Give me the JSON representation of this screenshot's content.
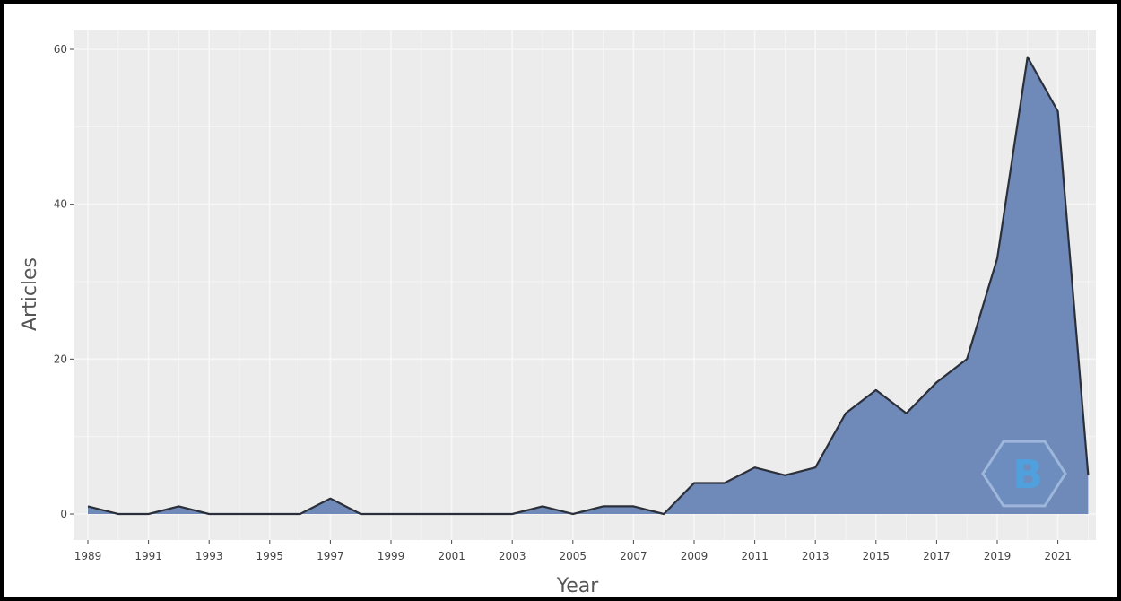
{
  "chart_data": {
    "type": "area",
    "title": "",
    "xlabel": "Year",
    "ylabel": "Articles",
    "x": [
      1989,
      1990,
      1991,
      1992,
      1993,
      1994,
      1995,
      1996,
      1997,
      1998,
      1999,
      2000,
      2001,
      2002,
      2003,
      2004,
      2005,
      2006,
      2007,
      2008,
      2009,
      2010,
      2011,
      2012,
      2013,
      2014,
      2015,
      2016,
      2017,
      2018,
      2019,
      2020,
      2021,
      2022
    ],
    "series": [
      {
        "values": [
          1,
          0,
          0,
          1,
          0,
          0,
          0,
          0,
          2,
          0,
          0,
          0,
          0,
          0,
          0,
          1,
          0,
          1,
          1,
          0,
          4,
          4,
          6,
          5,
          6,
          13,
          16,
          13,
          17,
          20,
          33,
          59,
          52,
          5
        ]
      }
    ],
    "xticks": [
      "1989",
      "1991",
      "1993",
      "1995",
      "1997",
      "1999",
      "2001",
      "2003",
      "2005",
      "2007",
      "2009",
      "2011",
      "2013",
      "2015",
      "2017",
      "2019",
      "2021"
    ],
    "yticks": [
      "0",
      "20",
      "40",
      "60"
    ],
    "ylim": [
      0,
      62
    ],
    "grid": true,
    "colors": {
      "fill": "#6f8ab8",
      "line": "#2b2f3a",
      "panel": "#ececec",
      "grid": "#f7f7f7",
      "frame": "#000000"
    }
  }
}
